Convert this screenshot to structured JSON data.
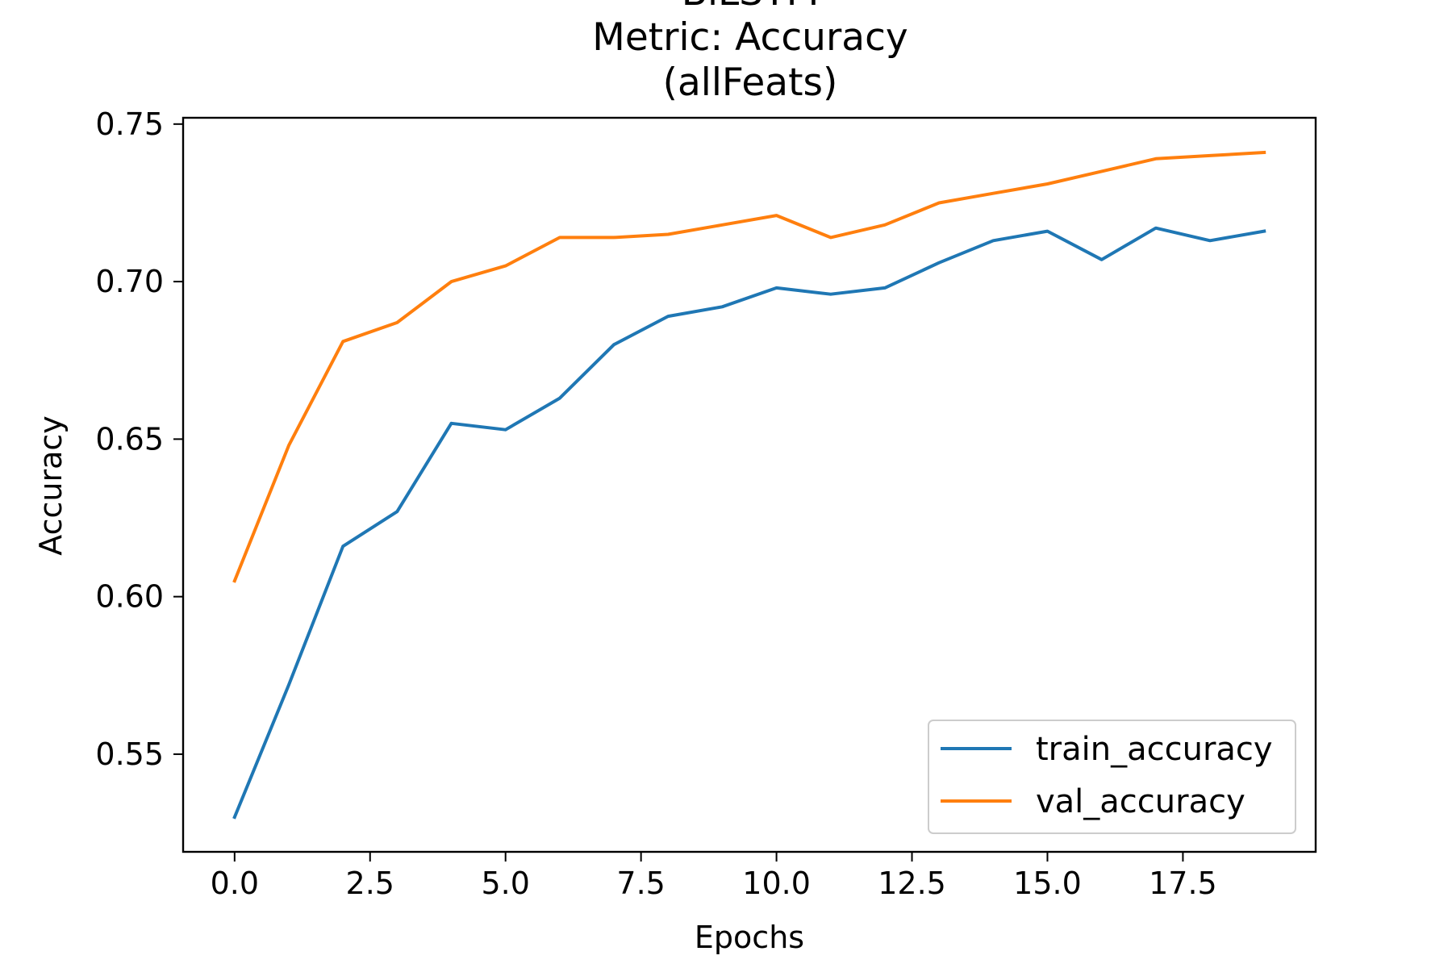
{
  "chart_data": {
    "type": "line",
    "title_lines": [
      "BiLSTM",
      "Metric: Accuracy",
      "(allFeats)"
    ],
    "xlabel": "Epochs",
    "ylabel": "Accuracy",
    "xlim": [
      -0.95,
      19.95
    ],
    "ylim": [
      0.519,
      0.752
    ],
    "xticks": [
      0.0,
      2.5,
      5.0,
      7.5,
      10.0,
      12.5,
      15.0,
      17.5
    ],
    "xtick_labels": [
      "0.0",
      "2.5",
      "5.0",
      "7.5",
      "10.0",
      "12.5",
      "15.0",
      "17.5"
    ],
    "yticks": [
      0.55,
      0.6,
      0.65,
      0.7,
      0.75
    ],
    "ytick_labels": [
      "0.55",
      "0.60",
      "0.65",
      "0.70",
      "0.75"
    ],
    "grid": false,
    "legend_position": "lower-right",
    "x": [
      0,
      1,
      2,
      3,
      4,
      5,
      6,
      7,
      8,
      9,
      10,
      11,
      12,
      13,
      14,
      15,
      16,
      17,
      18,
      19
    ],
    "series": [
      {
        "name": "train_accuracy",
        "color": "#1f77b4",
        "values": [
          0.53,
          0.572,
          0.616,
          0.627,
          0.655,
          0.653,
          0.663,
          0.68,
          0.689,
          0.692,
          0.698,
          0.696,
          0.698,
          0.706,
          0.713,
          0.716,
          0.707,
          0.717,
          0.713,
          0.716
        ]
      },
      {
        "name": "val_accuracy",
        "color": "#ff7f0e",
        "values": [
          0.605,
          0.648,
          0.681,
          0.687,
          0.7,
          0.705,
          0.714,
          0.714,
          0.715,
          0.718,
          0.721,
          0.714,
          0.718,
          0.725,
          0.728,
          0.731,
          0.735,
          0.739,
          0.74,
          0.741
        ]
      }
    ]
  }
}
